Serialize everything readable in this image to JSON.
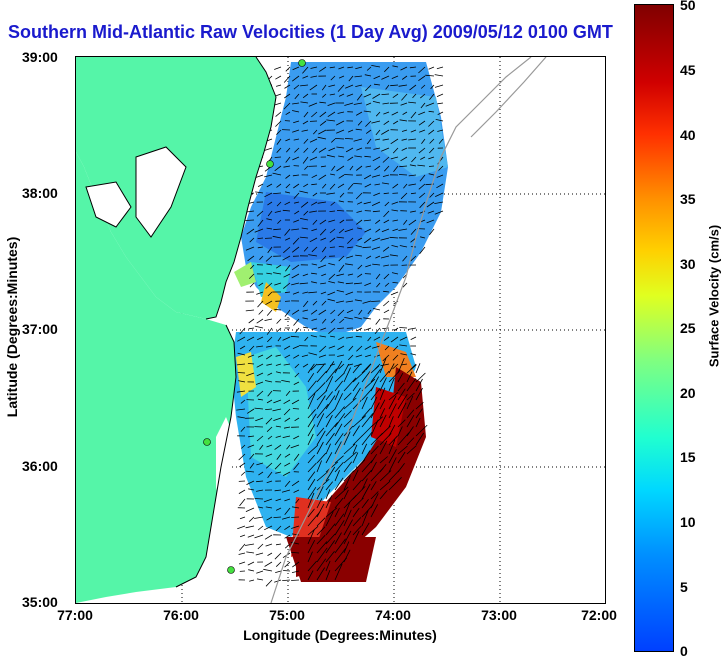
{
  "title": "Southern Mid-Atlantic Raw Velocities (1 Day Avg) 2009/05/12 0100 GMT",
  "xlabel": "Longitude (Degrees:Minutes)",
  "ylabel": "Latitude (Degrees:Minutes)",
  "x_ticks": [
    "77:00",
    "76:00",
    "75:00",
    "74:00",
    "73:00",
    "72:00"
  ],
  "y_ticks": [
    "39:00",
    "38:00",
    "37:00",
    "36:00",
    "35:00"
  ],
  "colorbar": {
    "label": "Surface Velocity (cm/s)",
    "ticks": [
      "50",
      "45",
      "40",
      "35",
      "30",
      "25",
      "20",
      "15",
      "10",
      "5",
      "0"
    ],
    "range": [
      0,
      50
    ]
  },
  "colors": {
    "land": "#55f5a8",
    "title": "#1a1acd",
    "water": "#ffffff"
  }
}
